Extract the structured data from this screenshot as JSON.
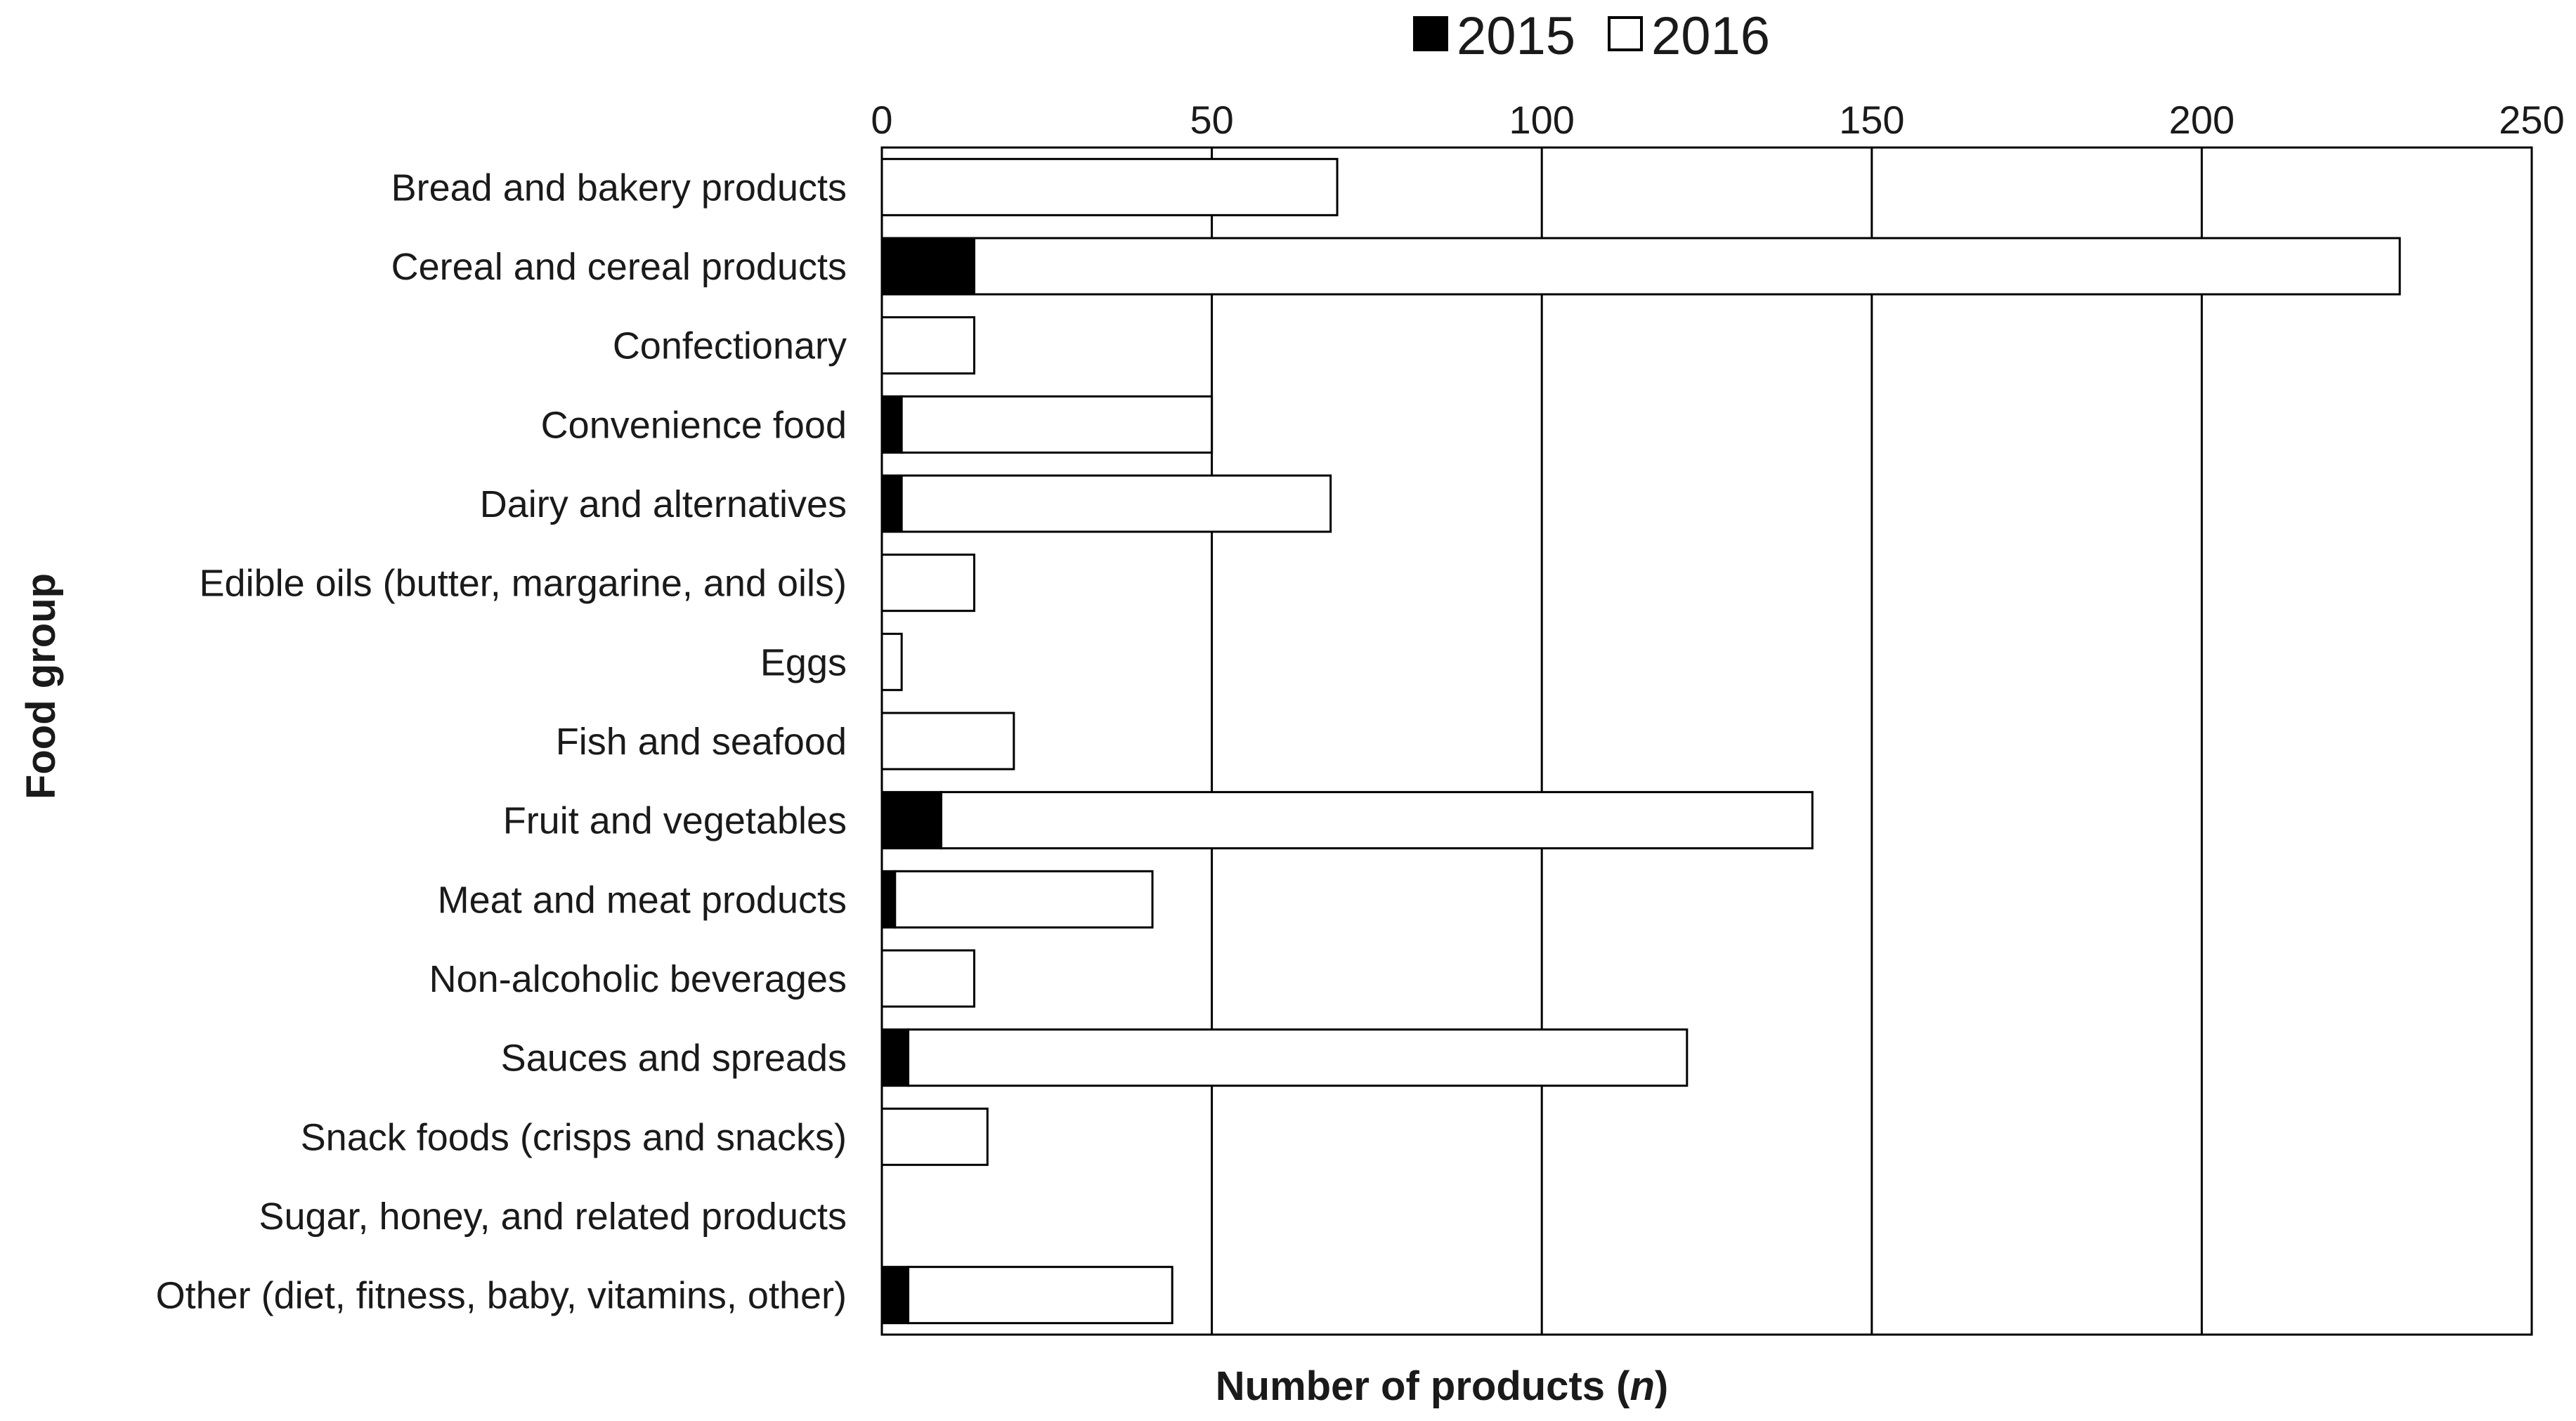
{
  "chart_data": {
    "type": "bar",
    "orientation": "horizontal",
    "stacked": true,
    "title": "",
    "xlabel": "Number of products",
    "xlabel_var": "n",
    "ylabel": "Food group",
    "xlim": [
      0,
      250
    ],
    "xticks": [
      0,
      50,
      100,
      150,
      200,
      250
    ],
    "grid": "vertical",
    "legend_position": "top",
    "categories": [
      "Bread and bakery products",
      "Cereal and cereal products",
      "Confectionary",
      "Convenience food",
      "Dairy and alternatives",
      "Edible oils (butter, margarine, and oils)",
      "Eggs",
      "Fish and seafood",
      "Fruit and vegetables",
      "Meat and meat products",
      "Non-alcoholic beverages",
      "Sauces and spreads",
      "Snack foods (crisps and snacks)",
      "Sugar, honey, and related products",
      "Other (diet, fitness, baby, vitamins, other)"
    ],
    "series": [
      {
        "name": "2015",
        "color": "#000000",
        "values": [
          0,
          14,
          0,
          3,
          3,
          0,
          0,
          0,
          9,
          2,
          0,
          4,
          0,
          0,
          4
        ]
      },
      {
        "name": "2016",
        "color": "#ffffff",
        "values": [
          69,
          216,
          14,
          47,
          65,
          14,
          3,
          20,
          132,
          39,
          14,
          118,
          16,
          0,
          40
        ]
      }
    ]
  }
}
